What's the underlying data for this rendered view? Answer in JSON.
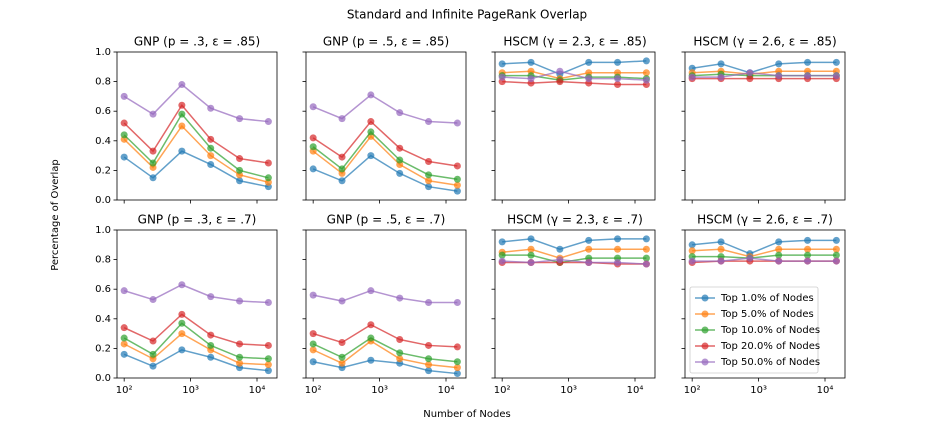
{
  "title": "Standard and Infinite PageRank Overlap",
  "x_label": "Number of Nodes",
  "y_label": "Percentage of Overlap",
  "series_styles": [
    {
      "name": "Top 1.0% of Nodes",
      "color": "#1f77b4"
    },
    {
      "name": "Top 5.0% of Nodes",
      "color": "#ff7f0e"
    },
    {
      "name": "Top 10.0% of Nodes",
      "color": "#2ca02c"
    },
    {
      "name": "Top 20.0% of Nodes",
      "color": "#d62728"
    },
    {
      "name": "Top 50.0% of Nodes",
      "color": "#9467bd"
    }
  ],
  "chart_data": [
    {
      "type": "line",
      "title": "GNP (p = .3, ε = .85)",
      "log_x": true,
      "x": [
        100,
        272,
        739,
        2009,
        5460,
        14841
      ],
      "xlim": [
        78,
        20000
      ],
      "ylim": [
        0,
        1
      ],
      "xticks": [
        100,
        1000,
        10000
      ],
      "xtick_labels": false,
      "yticks": [
        {
          "value": 0,
          "label": "0.0"
        },
        0.2,
        0.4,
        0.6,
        0.8,
        {
          "value": 1,
          "label": "1.0"
        }
      ],
      "ytick_labels": true,
      "series": [
        {
          "values": [
            0.29,
            0.15,
            0.33,
            0.24,
            0.13,
            0.09
          ]
        },
        {
          "values": [
            0.41,
            0.22,
            0.5,
            0.3,
            0.17,
            0.12
          ]
        },
        {
          "values": [
            0.44,
            0.25,
            0.58,
            0.35,
            0.2,
            0.15
          ]
        },
        {
          "values": [
            0.52,
            0.33,
            0.64,
            0.41,
            0.28,
            0.25
          ]
        },
        {
          "values": [
            0.7,
            0.58,
            0.78,
            0.62,
            0.55,
            0.53
          ]
        }
      ]
    },
    {
      "type": "line",
      "title": "GNP (p = .5, ε = .85)",
      "log_x": true,
      "x": [
        100,
        272,
        739,
        2009,
        5460,
        14841
      ],
      "xlim": [
        78,
        20000
      ],
      "ylim": [
        0,
        1
      ],
      "xticks": [
        100,
        1000,
        10000
      ],
      "xtick_labels": false,
      "yticks": [
        0,
        0.2,
        0.4,
        0.6,
        0.8,
        1
      ],
      "ytick_labels": false,
      "series": [
        {
          "values": [
            0.21,
            0.13,
            0.3,
            0.18,
            0.09,
            0.06
          ]
        },
        {
          "values": [
            0.33,
            0.18,
            0.43,
            0.24,
            0.13,
            0.1
          ]
        },
        {
          "values": [
            0.36,
            0.21,
            0.46,
            0.27,
            0.17,
            0.14
          ]
        },
        {
          "values": [
            0.42,
            0.29,
            0.53,
            0.35,
            0.26,
            0.23
          ]
        },
        {
          "values": [
            0.63,
            0.55,
            0.71,
            0.59,
            0.53,
            0.52
          ]
        }
      ]
    },
    {
      "type": "line",
      "title": "HSCM (γ = 2.3, ε = .85)",
      "log_x": true,
      "x": [
        100,
        272,
        739,
        2009,
        5460,
        14841
      ],
      "xlim": [
        78,
        20000
      ],
      "ylim": [
        0,
        1
      ],
      "xticks": [
        100,
        1000,
        10000
      ],
      "xtick_labels": false,
      "yticks": [
        0,
        0.2,
        0.4,
        0.6,
        0.8,
        1
      ],
      "ytick_labels": false,
      "series": [
        {
          "values": [
            0.92,
            0.93,
            0.85,
            0.93,
            0.93,
            0.94
          ]
        },
        {
          "values": [
            0.86,
            0.87,
            0.82,
            0.86,
            0.86,
            0.86
          ]
        },
        {
          "values": [
            0.84,
            0.84,
            0.81,
            0.83,
            0.83,
            0.82
          ]
        },
        {
          "values": [
            0.8,
            0.79,
            0.8,
            0.79,
            0.78,
            0.78
          ]
        },
        {
          "values": [
            0.83,
            0.82,
            0.87,
            0.82,
            0.82,
            0.81
          ]
        }
      ]
    },
    {
      "type": "line",
      "title": "HSCM (γ = 2.6, ε = .85)",
      "log_x": true,
      "x": [
        100,
        272,
        739,
        2009,
        5460,
        14841
      ],
      "xlim": [
        78,
        20000
      ],
      "ylim": [
        0,
        1
      ],
      "xticks": [
        100,
        1000,
        10000
      ],
      "xtick_labels": false,
      "yticks": [
        0,
        0.2,
        0.4,
        0.6,
        0.8,
        1
      ],
      "ytick_labels": false,
      "series": [
        {
          "values": [
            0.89,
            0.92,
            0.86,
            0.92,
            0.93,
            0.93
          ]
        },
        {
          "values": [
            0.86,
            0.87,
            0.85,
            0.87,
            0.87,
            0.87
          ]
        },
        {
          "values": [
            0.84,
            0.85,
            0.84,
            0.84,
            0.84,
            0.84
          ]
        },
        {
          "values": [
            0.82,
            0.82,
            0.82,
            0.82,
            0.82,
            0.82
          ]
        },
        {
          "values": [
            0.83,
            0.83,
            0.86,
            0.84,
            0.84,
            0.84
          ]
        }
      ]
    },
    {
      "type": "line",
      "title": "GNP (p = .3, ε = .7)",
      "log_x": true,
      "x": [
        100,
        272,
        739,
        2009,
        5460,
        14841
      ],
      "xlim": [
        78,
        20000
      ],
      "ylim": [
        0,
        1
      ],
      "xticks": [
        {
          "value": 100,
          "label": "10²"
        },
        {
          "value": 1000,
          "label": "10³"
        },
        {
          "value": 10000,
          "label": "10⁴"
        }
      ],
      "xtick_labels": true,
      "yticks": [
        {
          "value": 0,
          "label": "0.0"
        },
        0.2,
        0.4,
        0.6,
        0.8,
        {
          "value": 1,
          "label": "1.0"
        }
      ],
      "ytick_labels": true,
      "series": [
        {
          "values": [
            0.16,
            0.08,
            0.19,
            0.14,
            0.07,
            0.05
          ]
        },
        {
          "values": [
            0.23,
            0.13,
            0.3,
            0.19,
            0.1,
            0.09
          ]
        },
        {
          "values": [
            0.27,
            0.16,
            0.37,
            0.22,
            0.14,
            0.13
          ]
        },
        {
          "values": [
            0.34,
            0.25,
            0.43,
            0.29,
            0.23,
            0.22
          ]
        },
        {
          "values": [
            0.59,
            0.53,
            0.63,
            0.55,
            0.52,
            0.51
          ]
        }
      ]
    },
    {
      "type": "line",
      "title": "GNP (p = .5, ε = .7)",
      "log_x": true,
      "x": [
        100,
        272,
        739,
        2009,
        5460,
        14841
      ],
      "xlim": [
        78,
        20000
      ],
      "ylim": [
        0,
        1
      ],
      "xticks": [
        {
          "value": 100,
          "label": "10²"
        },
        {
          "value": 1000,
          "label": "10³"
        },
        {
          "value": 10000,
          "label": "10⁴"
        }
      ],
      "xtick_labels": true,
      "yticks": [
        0,
        0.2,
        0.4,
        0.6,
        0.8,
        1
      ],
      "ytick_labels": false,
      "series": [
        {
          "values": [
            0.11,
            0.07,
            0.12,
            0.1,
            0.05,
            0.03
          ]
        },
        {
          "values": [
            0.19,
            0.1,
            0.25,
            0.13,
            0.09,
            0.07
          ]
        },
        {
          "values": [
            0.23,
            0.14,
            0.27,
            0.17,
            0.13,
            0.11
          ]
        },
        {
          "values": [
            0.3,
            0.24,
            0.36,
            0.26,
            0.22,
            0.21
          ]
        },
        {
          "values": [
            0.56,
            0.52,
            0.59,
            0.54,
            0.51,
            0.51
          ]
        }
      ]
    },
    {
      "type": "line",
      "title": "HSCM (γ = 2.3, ε = .7)",
      "log_x": true,
      "x": [
        100,
        272,
        739,
        2009,
        5460,
        14841
      ],
      "xlim": [
        78,
        20000
      ],
      "ylim": [
        0,
        1
      ],
      "xticks": [
        {
          "value": 100,
          "label": "10²"
        },
        {
          "value": 1000,
          "label": "10³"
        },
        {
          "value": 10000,
          "label": "10⁴"
        }
      ],
      "xtick_labels": true,
      "yticks": [
        0,
        0.2,
        0.4,
        0.6,
        0.8,
        1
      ],
      "ytick_labels": false,
      "series": [
        {
          "values": [
            0.92,
            0.94,
            0.87,
            0.93,
            0.94,
            0.94
          ]
        },
        {
          "values": [
            0.85,
            0.87,
            0.81,
            0.87,
            0.87,
            0.87
          ]
        },
        {
          "values": [
            0.83,
            0.83,
            0.78,
            0.81,
            0.81,
            0.81
          ]
        },
        {
          "values": [
            0.78,
            0.78,
            0.78,
            0.78,
            0.77,
            0.77
          ]
        },
        {
          "values": [
            0.79,
            0.78,
            0.8,
            0.78,
            0.78,
            0.77
          ]
        }
      ]
    },
    {
      "type": "line",
      "title": "HSCM (γ = 2.6, ε = .7)",
      "log_x": true,
      "x": [
        100,
        272,
        739,
        2009,
        5460,
        14841
      ],
      "xlim": [
        78,
        20000
      ],
      "ylim": [
        0,
        1
      ],
      "xticks": [
        {
          "value": 100,
          "label": "10²"
        },
        {
          "value": 1000,
          "label": "10³"
        },
        {
          "value": 10000,
          "label": "10⁴"
        }
      ],
      "xtick_labels": true,
      "yticks": [
        0,
        0.2,
        0.4,
        0.6,
        0.8,
        1
      ],
      "ytick_labels": false,
      "legend": "lower left",
      "series": [
        {
          "values": [
            0.9,
            0.92,
            0.84,
            0.92,
            0.93,
            0.93
          ]
        },
        {
          "values": [
            0.86,
            0.87,
            0.82,
            0.87,
            0.87,
            0.87
          ]
        },
        {
          "values": [
            0.82,
            0.82,
            0.81,
            0.83,
            0.83,
            0.83
          ]
        },
        {
          "values": [
            0.78,
            0.79,
            0.79,
            0.79,
            0.79,
            0.79
          ]
        },
        {
          "values": [
            0.79,
            0.79,
            0.81,
            0.79,
            0.79,
            0.79
          ]
        }
      ]
    }
  ]
}
